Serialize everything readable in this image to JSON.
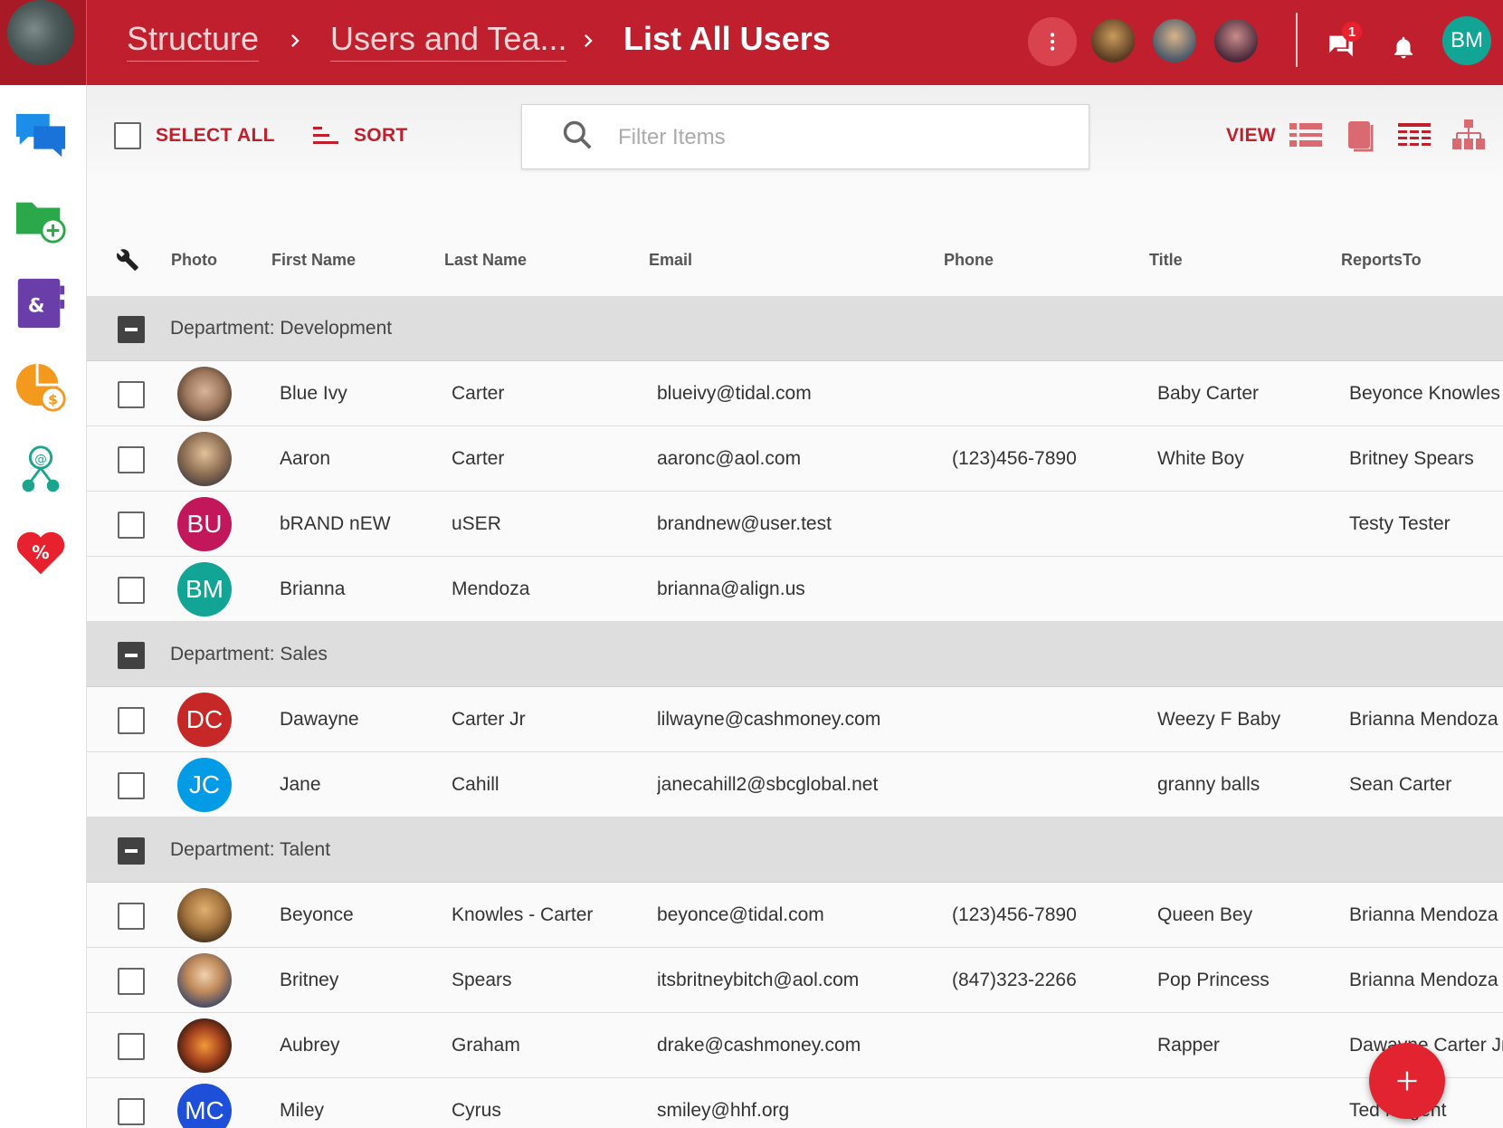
{
  "breadcrumb": {
    "items": [
      "Structure",
      "Users and Tea...",
      "List All Users"
    ]
  },
  "header": {
    "notification_count": "1",
    "user_initials": "BM",
    "more_icon": "more-vert-icon",
    "chat_icon": "chat-icon",
    "bell_icon": "bell-icon"
  },
  "sidebar": {
    "items": [
      {
        "icon": "chat-bubbles-icon"
      },
      {
        "icon": "folder-add-icon"
      },
      {
        "icon": "contacts-book-icon"
      },
      {
        "icon": "pie-chart-dollar-icon"
      },
      {
        "icon": "org-network-icon"
      },
      {
        "icon": "heart-percent-icon"
      }
    ]
  },
  "toolbar": {
    "select_all": "SELECT ALL",
    "sort": "SORT",
    "search_placeholder": "Filter Items",
    "view": "VIEW"
  },
  "columns": [
    "Photo",
    "First Name",
    "Last Name",
    "Email",
    "Phone",
    "Title",
    "ReportsTo"
  ],
  "groups": [
    {
      "label": "Department: Development",
      "rows": [
        {
          "initials": "",
          "first": "Blue Ivy",
          "last": "Carter",
          "email": "blueivy@tidal.com",
          "phone": "",
          "title": "Baby Carter",
          "reports": "Beyonce Knowles -"
        },
        {
          "initials": "",
          "first": "Aaron",
          "last": "Carter",
          "email": "aaronc@aol.com",
          "phone": "(123)456-7890",
          "title": "White Boy",
          "reports": "Britney Spears"
        },
        {
          "initials": "BU",
          "first": "bRAND nEW",
          "last": "uSER",
          "email": "brandnew@user.test",
          "phone": "",
          "title": "",
          "reports": "Testy Tester"
        },
        {
          "initials": "BM",
          "first": "Brianna",
          "last": "Mendoza",
          "email": "brianna@align.us",
          "phone": "",
          "title": "",
          "reports": ""
        }
      ]
    },
    {
      "label": "Department: Sales",
      "rows": [
        {
          "initials": "DC",
          "first": "Dawayne",
          "last": "Carter Jr",
          "email": "lilwayne@cashmoney.com",
          "phone": "",
          "title": "Weezy F Baby",
          "reports": "Brianna Mendoza"
        },
        {
          "initials": "JC",
          "first": "Jane",
          "last": "Cahill",
          "email": "janecahill2@sbcglobal.net",
          "phone": "",
          "title": "granny balls",
          "reports": "Sean Carter"
        }
      ]
    },
    {
      "label": "Department: Talent",
      "rows": [
        {
          "initials": "",
          "first": "Beyonce",
          "last": "Knowles - Carter",
          "email": "beyonce@tidal.com",
          "phone": "(123)456-7890",
          "title": "Queen Bey",
          "reports": "Brianna Mendoza"
        },
        {
          "initials": "",
          "first": "Britney",
          "last": "Spears",
          "email": "itsbritneybitch@aol.com",
          "phone": "(847)323-2266",
          "title": "Pop Princess",
          "reports": "Brianna Mendoza"
        },
        {
          "initials": "",
          "first": "Aubrey",
          "last": "Graham",
          "email": "drake@cashmoney.com",
          "phone": "",
          "title": "Rapper",
          "reports": "Dawayne Carter Jr"
        },
        {
          "initials": "MC",
          "first": "Miley",
          "last": "Cyrus",
          "email": "smiley@hhf.org",
          "phone": "",
          "title": "",
          "reports": "Ted Nugent"
        }
      ]
    }
  ],
  "colors": {
    "brand": "#c0202d",
    "fab": "#e22330",
    "group_bg": "#dedede"
  },
  "fab_icon": "plus-icon"
}
